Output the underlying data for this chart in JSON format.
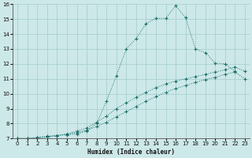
{
  "xlabel": "Humidex (Indice chaleur)",
  "bg_color": "#cde8e8",
  "grid_color": "#a8d0d0",
  "line_color": "#1a6e6a",
  "xlim": [
    -0.5,
    23.5
  ],
  "ylim": [
    7,
    16
  ],
  "xticks": [
    0,
    1,
    2,
    3,
    4,
    5,
    6,
    7,
    8,
    9,
    10,
    11,
    12,
    13,
    14,
    15,
    16,
    17,
    18,
    19,
    20,
    21,
    22,
    23
  ],
  "yticks": [
    7,
    8,
    9,
    10,
    11,
    12,
    13,
    14,
    15,
    16
  ],
  "line1_x": [
    0,
    1,
    3,
    4,
    5,
    6,
    7,
    8,
    9,
    10,
    11,
    12,
    13,
    14,
    15,
    16,
    17,
    18,
    19,
    20,
    21,
    22
  ],
  "line1_y": [
    7.0,
    7.0,
    7.15,
    7.2,
    7.25,
    7.3,
    7.5,
    8.0,
    9.5,
    11.2,
    13.0,
    13.7,
    14.7,
    15.05,
    15.05,
    15.9,
    15.1,
    13.0,
    12.75,
    12.05,
    12.0,
    11.5
  ],
  "line2_x": [
    0,
    1,
    2,
    3,
    4,
    5,
    6,
    7,
    8,
    9,
    10,
    11,
    12,
    13,
    14,
    15,
    16,
    17,
    18,
    19,
    20,
    21,
    22,
    23
  ],
  "line2_y": [
    7.0,
    7.0,
    7.05,
    7.1,
    7.2,
    7.3,
    7.4,
    7.55,
    7.8,
    8.1,
    8.45,
    8.8,
    9.15,
    9.5,
    9.8,
    10.1,
    10.35,
    10.55,
    10.75,
    10.95,
    11.1,
    11.3,
    11.45,
    11.0
  ],
  "line3_x": [
    0,
    1,
    2,
    3,
    4,
    5,
    6,
    7,
    8,
    9,
    10,
    11,
    12,
    13,
    14,
    15,
    16,
    17,
    18,
    19,
    20,
    21,
    22,
    23
  ],
  "line3_y": [
    7.0,
    7.0,
    7.05,
    7.1,
    7.2,
    7.3,
    7.5,
    7.7,
    8.1,
    8.5,
    9.0,
    9.4,
    9.75,
    10.1,
    10.4,
    10.65,
    10.85,
    11.0,
    11.15,
    11.3,
    11.45,
    11.6,
    11.8,
    11.5
  ]
}
